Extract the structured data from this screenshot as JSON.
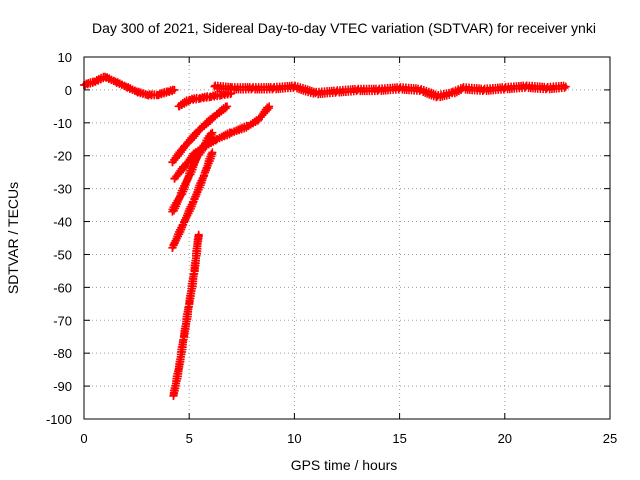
{
  "chart_data": {
    "type": "scatter",
    "title": "Day 300 of 2021, Sidereal Day-to-day VTEC variation (SDTVAR) for receiver ynki",
    "xlabel": "GPS time / hours",
    "ylabel": "SDTVAR / TECUs",
    "xlim": [
      0,
      25
    ],
    "ylim": [
      -100,
      10
    ],
    "xticks": [
      0,
      5,
      10,
      15,
      20,
      25
    ],
    "yticks": [
      10,
      0,
      -10,
      -20,
      -30,
      -40,
      -50,
      -60,
      -70,
      -80,
      -90,
      -100
    ],
    "grid": true,
    "legend": "none",
    "marker": "plus",
    "color": "#ff0000",
    "series": [
      {
        "x": [
          0,
          0.5,
          1.0,
          1.5,
          2.0,
          2.5,
          3.0,
          3.5,
          4.0,
          4.3
        ],
        "y": [
          1.5,
          2.5,
          4.0,
          2.5,
          1.0,
          -0.5,
          -1.5,
          -1.5,
          -0.5,
          0
        ]
      },
      {
        "x": [
          4.5,
          5.0,
          5.5,
          6.0,
          6.5,
          7.0
        ],
        "y": [
          -5,
          -3,
          -2.5,
          -2,
          -1.5,
          -1
        ]
      },
      {
        "x": [
          6.2,
          7.0,
          8.0,
          9.0,
          10.0,
          11.0,
          12.0,
          13.0,
          14.0,
          15.0,
          16.0,
          16.8,
          17.5,
          18.0,
          19.0,
          20.0,
          21.0,
          22.0,
          22.9
        ],
        "y": [
          1,
          0.5,
          0.5,
          0.5,
          1,
          -1,
          -0.5,
          0,
          0,
          0.5,
          0,
          -2,
          -1,
          0.5,
          0,
          0.5,
          1,
          0.5,
          1
        ]
      },
      {
        "x": [
          4.2,
          4.8,
          5.5,
          6.2,
          6.8
        ],
        "y": [
          -22,
          -17,
          -12,
          -8,
          -5
        ]
      },
      {
        "x": [
          4.3,
          4.8,
          5.3,
          5.8,
          6.3,
          7.0,
          7.8,
          8.3,
          8.8
        ],
        "y": [
          -27,
          -23,
          -19,
          -17,
          -15,
          -13,
          -11,
          -9,
          -5
        ]
      },
      {
        "x": [
          4.2,
          4.6,
          5.0,
          5.4,
          5.8,
          6.1
        ],
        "y": [
          -37,
          -32,
          -26,
          -20,
          -16,
          -13
        ]
      },
      {
        "x": [
          4.2,
          4.7,
          5.2,
          5.7,
          6.1
        ],
        "y": [
          -48,
          -41,
          -34,
          -26,
          -19
        ]
      },
      {
        "x": [
          4.25,
          4.5,
          4.75,
          5.0,
          5.25,
          5.45
        ],
        "y": [
          -93,
          -85,
          -75,
          -65,
          -55,
          -44
        ]
      }
    ]
  }
}
